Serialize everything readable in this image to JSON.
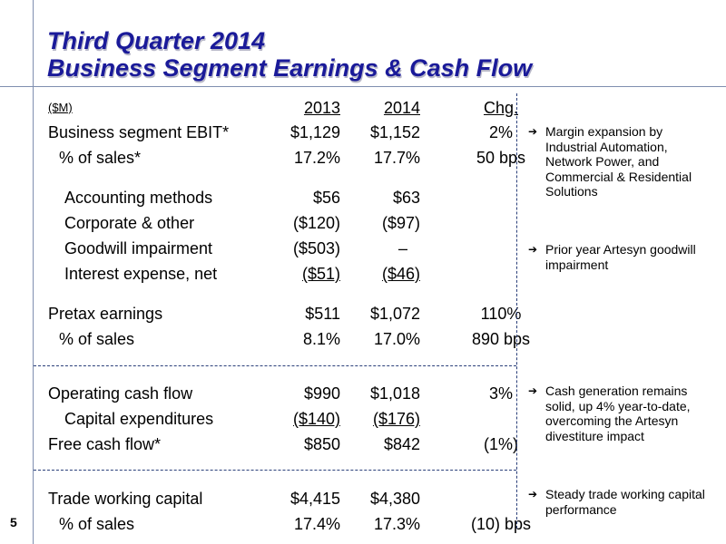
{
  "title": {
    "line1": "Third Quarter 2014",
    "line2": "Business Segment Earnings & Cash Flow"
  },
  "header": {
    "units": "($M)",
    "y2013": "2013",
    "y2014": "2014",
    "chg": "Chg."
  },
  "rows": [
    {
      "label": "Business segment EBIT*",
      "v2013": "$1,129",
      "v2014": "$1,152",
      "chg": "2%"
    },
    {
      "label": "% of sales*",
      "v2013": "17.2%",
      "v2014": "17.7%",
      "chg": "50 bps"
    },
    {
      "label": "Accounting methods",
      "v2013": "$56",
      "v2014": "$63",
      "chg": ""
    },
    {
      "label": "Corporate & other",
      "v2013": "($120)",
      "v2014": "($97)",
      "chg": ""
    },
    {
      "label": "Goodwill impairment",
      "v2013": "($503)",
      "v2014": "–",
      "chg": ""
    },
    {
      "label": "Interest expense, net",
      "v2013": "($51)",
      "v2014": "($46)",
      "chg": ""
    },
    {
      "label": "Pretax earnings",
      "v2013": "$511",
      "v2014": "$1,072",
      "chg": "110%"
    },
    {
      "label": "% of sales",
      "v2013": "8.1%",
      "v2014": "17.0%",
      "chg": "890 bps"
    },
    {
      "label": "Operating cash flow",
      "v2013": "$990",
      "v2014": "$1,018",
      "chg": "3%"
    },
    {
      "label": "Capital expenditures",
      "v2013": "($140)",
      "v2014": "($176)",
      "chg": ""
    },
    {
      "label": "Free cash flow*",
      "v2013": "$850",
      "v2014": "$842",
      "chg": "(1%)"
    },
    {
      "label": "Trade working capital",
      "v2013": "$4,415",
      "v2014": "$4,380",
      "chg": ""
    },
    {
      "label": "% of sales",
      "v2013": "17.4%",
      "v2014": "17.3%",
      "chg": "(10) bps"
    }
  ],
  "notes": [
    {
      "arrow": "➔",
      "text": "Margin expansion by Industrial Automation, Network Power, and Commercial & Residential Solutions"
    },
    {
      "arrow": "➔",
      "text": "Prior year Artesyn goodwill impairment"
    },
    {
      "arrow": "➔",
      "text": "Cash generation remains solid, up 4% year-to-date, overcoming the Artesyn divestiture impact"
    },
    {
      "arrow": "➔",
      "text": "Steady trade working capital performance"
    }
  ],
  "page_number": "5"
}
